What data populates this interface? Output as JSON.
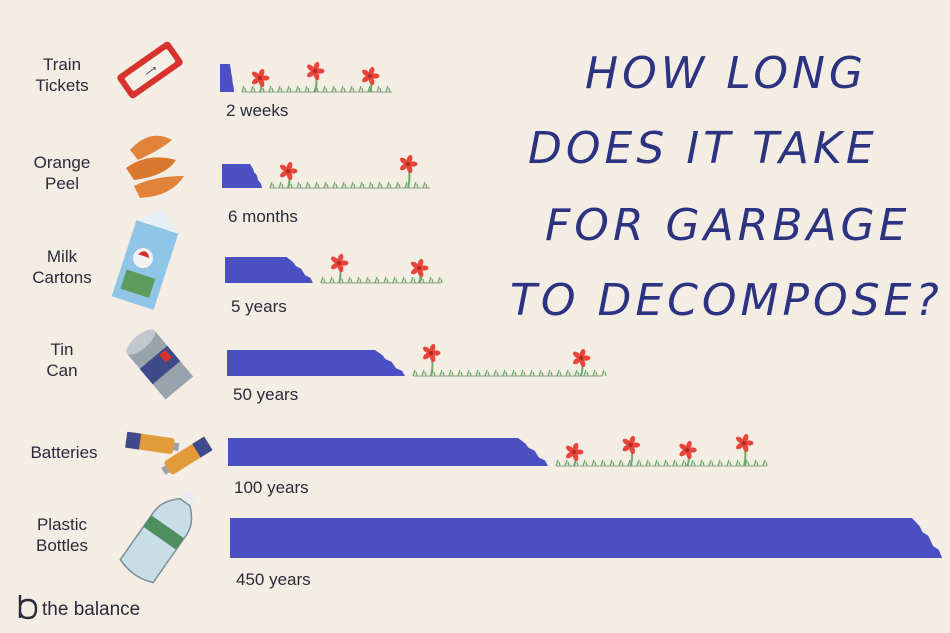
{
  "chart_data": {
    "type": "bar",
    "title_lines": [
      "HOW LONG",
      "DOES IT TAKE",
      "FOR GARBAGE",
      "TO DECOMPOSE?"
    ],
    "categories": [
      [
        "Train",
        "Tickets"
      ],
      [
        "Orange",
        "Peel"
      ],
      [
        "Milk",
        "Cartons"
      ],
      [
        "Tin",
        "Can"
      ],
      [
        "Batteries"
      ],
      [
        "Plastic",
        "Bottles"
      ]
    ],
    "value_labels": [
      "2 weeks",
      "6 months",
      "5 years",
      "50 years",
      "100 years",
      "450 years"
    ],
    "values_years": [
      0.04,
      0.5,
      5,
      50,
      100,
      450
    ],
    "bar_color": "#4a4fc2",
    "flower_color": "#e8453c",
    "stem_color": "#6aab6a"
  },
  "brand": {
    "name": "the balance"
  },
  "icons": [
    "ticket-icon",
    "orange-peel-icon",
    "milk-carton-icon",
    "tin-can-icon",
    "batteries-icon",
    "plastic-bottle-icon",
    "brand-logo-icon"
  ]
}
